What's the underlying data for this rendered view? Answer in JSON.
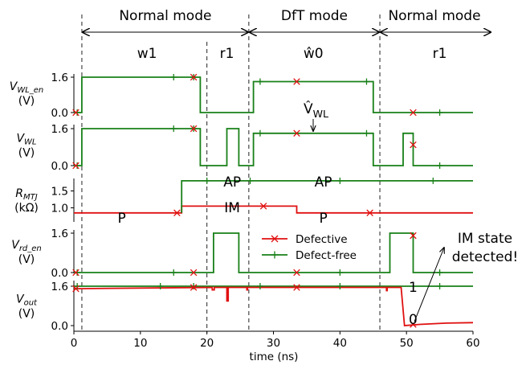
{
  "chart_data": {
    "type": "line",
    "xlabel": "time (ns)",
    "xlim": [
      0,
      60
    ],
    "x_ticks": [
      "0",
      "10",
      "20",
      "30",
      "40",
      "50",
      "60"
    ],
    "colors": {
      "defective": "#e01010",
      "defect_free": "#188018"
    },
    "modes": [
      {
        "label": "Normal mode",
        "t_start": 1.2,
        "t_end": 26.3
      },
      {
        "label": "DfT mode",
        "t_start": 26.3,
        "t_end": 46.0
      },
      {
        "label": "Normal mode",
        "t_start": 46.0,
        "t_end": 60
      }
    ],
    "ops": [
      {
        "label": "w1",
        "t": 11
      },
      {
        "label": "r1",
        "t": 23
      },
      {
        "label": "ŵ0",
        "t": 36
      },
      {
        "label": "r1",
        "t": 55
      }
    ],
    "phase_boundaries_ns": [
      1.2,
      20.0,
      26.3,
      46.0
    ],
    "legend": [
      {
        "label": "Defective",
        "series": "defective",
        "marker": "x"
      },
      {
        "label": "Defect-free",
        "series": "defect_free",
        "marker": "+"
      }
    ],
    "panels": [
      {
        "id": "vwl_en",
        "ylabel_main": "V",
        "ylabel_sub": "WL_en",
        "unit": "(V)",
        "ylim": [
          0,
          1.6
        ],
        "yticks": [
          0.0,
          1.6
        ],
        "ytick_labels": [
          "0.0",
          "1.6"
        ],
        "series": {
          "defect_free": {
            "x": [
              0,
              1.2,
              1.2,
              19.0,
              19.0,
              27.0,
              27.0,
              45.0,
              45.0,
              60
            ],
            "y": [
              0,
              0,
              1.6,
              1.6,
              0,
              0,
              1.4,
              1.4,
              0,
              0
            ]
          }
        },
        "markers": {
          "defect_free": [
            [
              0.5,
              0
            ],
            [
              15,
              1.6
            ],
            [
              18,
              1.6
            ],
            [
              28,
              1.4
            ],
            [
              44,
              1.4
            ],
            [
              55,
              0
            ]
          ],
          "defective": [
            [
              0.3,
              0
            ],
            [
              18,
              1.6
            ],
            [
              33.5,
              1.4
            ],
            [
              51,
              0
            ]
          ]
        }
      },
      {
        "id": "vwl",
        "ylabel_main": "V",
        "ylabel_sub": "WL",
        "unit": "(V)",
        "ylim": [
          0,
          1.6
        ],
        "yticks": [
          0.0,
          1.6
        ],
        "ytick_labels": [
          "0.0",
          "1.6"
        ],
        "annotation": {
          "main": "V̂",
          "sub": "WL"
        },
        "series": {
          "defect_free": {
            "x": [
              0,
              1.2,
              1.2,
              19.0,
              19.0,
              23.0,
              23.0,
              24.8,
              24.8,
              27.0,
              27.0,
              45.0,
              45.0,
              49.5,
              49.5,
              51.0,
              51.0,
              60
            ],
            "y": [
              0,
              0,
              1.6,
              1.6,
              0,
              0,
              1.6,
              1.6,
              0,
              0,
              1.4,
              1.4,
              0,
              0,
              1.4,
              1.4,
              0,
              0
            ]
          }
        },
        "markers": {
          "defect_free": [
            [
              0.5,
              0
            ],
            [
              15,
              1.6
            ],
            [
              18,
              1.6
            ],
            [
              28,
              1.4
            ],
            [
              44,
              1.4
            ],
            [
              55,
              0
            ]
          ],
          "defective": [
            [
              0.3,
              0
            ],
            [
              18,
              1.6
            ],
            [
              33.5,
              1.4
            ],
            [
              51,
              0.9
            ]
          ]
        }
      },
      {
        "id": "rmtj",
        "ylabel_main": "R",
        "ylabel_sub": "MTJ",
        "unit": "(kΩ)",
        "ylim": [
          0.75,
          1.65
        ],
        "yticks": [
          1.0,
          1.5
        ],
        "ytick_labels": [
          "1.0",
          "1.5"
        ],
        "labels": [
          {
            "text": "AP",
            "t": 23.8,
            "v": 1.7
          },
          {
            "text": "AP",
            "t": 37.5,
            "v": 1.7
          },
          {
            "text": "IM",
            "t": 23.8,
            "v": 1.0
          },
          {
            "text": "P",
            "t": 7.2,
            "v": 0.76
          },
          {
            "text": "P",
            "t": 37.5,
            "v": 0.76
          }
        ],
        "series": {
          "defective": {
            "x": [
              0,
              16.2,
              16.2,
              33.5,
              33.5,
              60
            ],
            "y": [
              0.85,
              0.85,
              1.05,
              1.05,
              0.85,
              0.85
            ]
          },
          "defect_free": {
            "x": [
              16.2,
              16.2,
              60
            ],
            "y": [
              0.85,
              1.8,
              1.8
            ]
          }
        },
        "markers": {
          "defect_free": [
            [
              20,
              1.8
            ],
            [
              26.5,
              1.8
            ],
            [
              40,
              1.8
            ],
            [
              54,
              1.8
            ]
          ],
          "defective": [
            [
              15.5,
              0.85
            ],
            [
              28.5,
              1.05
            ],
            [
              44.5,
              0.85
            ]
          ]
        }
      },
      {
        "id": "vrd_en",
        "ylabel_main": "V",
        "ylabel_sub": "rd_en",
        "unit": "(V)",
        "ylim": [
          0,
          1.6
        ],
        "yticks": [
          0.0,
          1.6
        ],
        "ytick_labels": [
          "0.0",
          "1.6"
        ],
        "series": {
          "defect_free": {
            "x": [
              0,
              21.0,
              21.0,
              24.8,
              24.8,
              47.5,
              47.5,
              51.0,
              51.0,
              60
            ],
            "y": [
              0,
              0,
              1.6,
              1.6,
              0,
              0,
              1.6,
              1.6,
              0,
              0
            ]
          }
        },
        "markers": {
          "defect_free": [
            [
              0.5,
              0
            ],
            [
              15,
              0
            ],
            [
              40,
              0
            ],
            [
              55,
              0
            ]
          ],
          "defective": [
            [
              0.3,
              0
            ],
            [
              18,
              0
            ],
            [
              33.5,
              0
            ],
            [
              51,
              1.5
            ]
          ]
        }
      },
      {
        "id": "vout",
        "ylabel_main": "V",
        "ylabel_sub": "out",
        "unit": "(V)",
        "ylim": [
          0,
          1.6
        ],
        "yticks": [
          0.0,
          1.6
        ],
        "ytick_labels": [
          "0.0",
          "1.6"
        ],
        "labels": [
          {
            "text": "1",
            "t": 51.0,
            "v": 1.6
          },
          {
            "text": "0",
            "t": 51.0,
            "v": 0.22
          }
        ],
        "series": {
          "defect_free": {
            "x": [
              0,
              60
            ],
            "y": [
              1.6,
              1.6
            ]
          },
          "defective": {
            "x": [
              0,
              20.8,
              20.8,
              21.1,
              21.1,
              23.0,
              23.0,
              23.2,
              23.2,
              26.0,
              26.0,
              26.1,
              26.1,
              47.0,
              47.0,
              47.1,
              47.1,
              49.2,
              49.7,
              52.0,
              56.0,
              60.0
            ],
            "y": [
              1.5,
              1.55,
              1.45,
              1.45,
              1.55,
              1.55,
              1.0,
              1.0,
              1.55,
              1.55,
              1.45,
              1.45,
              1.55,
              1.55,
              1.42,
              1.42,
              1.55,
              1.55,
              0.0,
              0.05,
              0.1,
              0.12
            ]
          }
        },
        "markers": {
          "defect_free": [
            [
              0.5,
              1.6
            ],
            [
              13,
              1.6
            ],
            [
              18,
              1.6
            ],
            [
              28,
              1.6
            ],
            [
              40,
              1.6
            ],
            [
              55,
              1.6
            ]
          ],
          "defective": [
            [
              0.3,
              1.5
            ],
            [
              18,
              1.55
            ],
            [
              33.5,
              1.55
            ],
            [
              51,
              0.05
            ]
          ]
        }
      }
    ],
    "annotation_detected": {
      "line1": "IM state",
      "line2": "detected!"
    }
  }
}
